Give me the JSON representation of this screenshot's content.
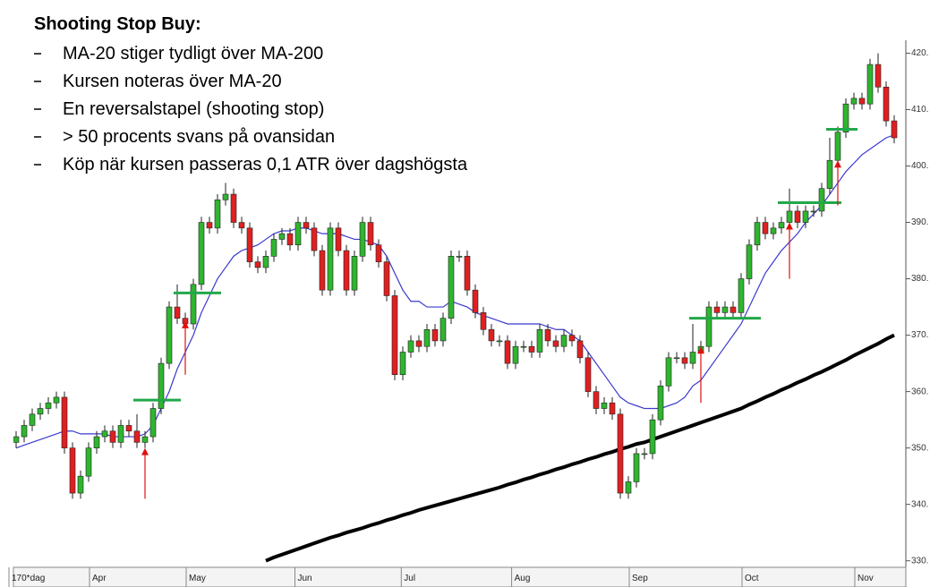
{
  "chart_data": {
    "type": "candlestick",
    "title": "Shooting Stop Buy:",
    "bullets": [
      "MA-20 stiger tydligt över MA-200",
      "Kursen noteras över MA-20",
      "En reversalstapel (shooting stop)",
      "> 50 procents svans på ovansidan",
      "Köp när kursen passeras 0,1 ATR över dagshögsta"
    ],
    "open": [
      351,
      352,
      354,
      356,
      357,
      358,
      359,
      350,
      342,
      345,
      350,
      352,
      353,
      351,
      354,
      353,
      351,
      352,
      357,
      365,
      375,
      373,
      372,
      379,
      390,
      389,
      394,
      395,
      390,
      389,
      383,
      382,
      384,
      387,
      388,
      386,
      390,
      389,
      385,
      378,
      389,
      385,
      378,
      384,
      390,
      386,
      383,
      377,
      363,
      367,
      369,
      368,
      371,
      369,
      373,
      384,
      384,
      378,
      374,
      371,
      369,
      369,
      365,
      368,
      368,
      367,
      371,
      369,
      368,
      370,
      369,
      366,
      360,
      357,
      358,
      356,
      342,
      344,
      349,
      349,
      355,
      361,
      366,
      366,
      365,
      367,
      368,
      375,
      374,
      375,
      374,
      380,
      386,
      390,
      388,
      389,
      390,
      392,
      390,
      392,
      392,
      396,
      401,
      406,
      411,
      412,
      411,
      418,
      414,
      408
    ],
    "high": [
      353,
      355,
      357,
      358,
      359,
      360,
      360,
      351,
      346,
      351,
      353,
      354,
      354,
      355,
      355,
      356,
      353,
      358,
      366,
      376,
      379,
      374,
      380,
      391,
      391,
      395,
      397,
      396,
      391,
      390,
      384,
      385,
      388,
      389,
      389,
      391,
      391,
      390,
      386,
      390,
      390,
      386,
      385,
      391,
      391,
      387,
      384,
      378,
      368,
      370,
      370,
      372,
      372,
      374,
      385,
      385,
      385,
      379,
      375,
      372,
      370,
      370,
      369,
      369,
      369,
      372,
      372,
      370,
      371,
      371,
      370,
      367,
      361,
      359,
      359,
      357,
      345,
      350,
      350,
      356,
      362,
      367,
      367,
      367,
      372,
      369,
      376,
      376,
      376,
      376,
      381,
      387,
      391,
      391,
      390,
      391,
      396,
      393,
      393,
      393,
      397,
      405,
      407,
      412,
      413,
      413,
      419,
      420,
      415,
      409
    ],
    "low": [
      350,
      351,
      353,
      355,
      356,
      357,
      349,
      341,
      341,
      344,
      349,
      351,
      350,
      350,
      352,
      350,
      350,
      351,
      356,
      364,
      372,
      371,
      371,
      378,
      388,
      388,
      393,
      389,
      388,
      382,
      381,
      381,
      383,
      386,
      385,
      385,
      388,
      384,
      377,
      377,
      384,
      377,
      377,
      383,
      385,
      382,
      376,
      362,
      362,
      366,
      367,
      367,
      368,
      368,
      372,
      383,
      377,
      373,
      370,
      368,
      368,
      364,
      364,
      367,
      366,
      366,
      368,
      367,
      367,
      368,
      365,
      359,
      356,
      356,
      355,
      341,
      341,
      343,
      348,
      348,
      354,
      360,
      365,
      364,
      364,
      366,
      367,
      373,
      373,
      373,
      373,
      379,
      385,
      387,
      387,
      388,
      389,
      389,
      389,
      391,
      391,
      395,
      400,
      405,
      410,
      410,
      410,
      413,
      407,
      404
    ],
    "close": [
      352,
      354,
      356,
      357,
      358,
      359,
      350,
      342,
      345,
      350,
      352,
      353,
      351,
      354,
      353,
      351,
      352,
      357,
      365,
      375,
      373,
      372,
      379,
      390,
      389,
      394,
      395,
      390,
      389,
      383,
      382,
      384,
      387,
      388,
      386,
      390,
      389,
      385,
      378,
      389,
      385,
      378,
      384,
      390,
      386,
      383,
      377,
      363,
      367,
      369,
      368,
      371,
      369,
      373,
      384,
      384,
      378,
      374,
      371,
      369,
      369,
      365,
      368,
      368,
      367,
      371,
      369,
      368,
      370,
      369,
      366,
      360,
      357,
      358,
      356,
      342,
      344,
      349,
      349,
      355,
      361,
      366,
      366,
      365,
      367,
      368,
      375,
      374,
      375,
      374,
      380,
      386,
      390,
      388,
      389,
      390,
      392,
      390,
      392,
      392,
      396,
      401,
      406,
      411,
      412,
      411,
      418,
      414,
      408,
      405
    ],
    "series": [
      {
        "name": "MA-20",
        "color": "#3a3ad0",
        "values": [
          350,
          350.5,
          351,
          351.5,
          352,
          352.5,
          353,
          353,
          352.5,
          352.5,
          352.5,
          352.5,
          352,
          352,
          352,
          352,
          352.5,
          354,
          357,
          360,
          364,
          367,
          370,
          374,
          377,
          380,
          382,
          384,
          385,
          385.5,
          386,
          387,
          388,
          388.5,
          388.5,
          389,
          389,
          388.5,
          388,
          388,
          388,
          387.5,
          387,
          387,
          386.5,
          386,
          384,
          381,
          378,
          376,
          376,
          375,
          375,
          375,
          376,
          375.5,
          375,
          374,
          373.5,
          373,
          372.5,
          372,
          372,
          372,
          372,
          372,
          371.5,
          371,
          371,
          370,
          369,
          367,
          365,
          363,
          361,
          359,
          358,
          357.5,
          357,
          357,
          357,
          357.5,
          358,
          359,
          361,
          362,
          364,
          366,
          368,
          370,
          372,
          375,
          378,
          381,
          383,
          385,
          386.5,
          388,
          390,
          391.5,
          393,
          395,
          397,
          399,
          400.5,
          402,
          403,
          404,
          405,
          405.5
        ]
      },
      {
        "name": "MA-200",
        "color": "#000000",
        "values": [
          null,
          null,
          null,
          null,
          null,
          null,
          null,
          null,
          null,
          null,
          null,
          null,
          null,
          null,
          null,
          null,
          null,
          null,
          null,
          null,
          null,
          null,
          null,
          null,
          null,
          null,
          null,
          null,
          null,
          null,
          null,
          330,
          330.6,
          331.1,
          331.6,
          332.1,
          332.6,
          333.1,
          333.6,
          334.1,
          334.5,
          335,
          335.4,
          335.8,
          336.3,
          336.7,
          337.2,
          337.6,
          338.1,
          338.5,
          339,
          339.4,
          339.8,
          340.2,
          340.6,
          341,
          341.4,
          341.8,
          342.2,
          342.6,
          343,
          343.5,
          343.9,
          344.4,
          344.8,
          345.3,
          345.7,
          346.2,
          346.6,
          347.1,
          347.5,
          348,
          348.4,
          348.9,
          349.3,
          349.8,
          350.2,
          350.7,
          351,
          351.5,
          352,
          352.5,
          353,
          353.5,
          354,
          354.5,
          355,
          355.5,
          356,
          356.5,
          357,
          357.7,
          358.3,
          359,
          359.6,
          360.3,
          360.9,
          361.6,
          362.2,
          362.9,
          363.5,
          364.2,
          364.9,
          365.6,
          366.4,
          367.1,
          367.8,
          368.5,
          369.3,
          370
        ]
      }
    ],
    "levels": [
      {
        "from": 15,
        "to": 20,
        "value": 358.5
      },
      {
        "from": 20,
        "to": 25,
        "value": 377.5
      },
      {
        "from": 84,
        "to": 92,
        "value": 373
      },
      {
        "from": 95,
        "to": 102,
        "value": 393.5
      },
      {
        "from": 101,
        "to": 104,
        "value": 406.5
      }
    ],
    "arrows": [
      {
        "index": 16,
        "from": 341,
        "to": 350
      },
      {
        "index": 21,
        "from": 363,
        "to": 372.5
      },
      {
        "index": 85,
        "from": 358,
        "to": 368
      },
      {
        "index": 96,
        "from": 380,
        "to": 390
      },
      {
        "index": 102,
        "from": 393,
        "to": 401
      }
    ],
    "up_color": "#2fb52f",
    "down_color": "#e02020",
    "level_color": "#22a84a",
    "arrow_color": "#e01010",
    "ylim": [
      329,
      421.5
    ],
    "yticks": [
      {
        "value": 330,
        "label": "330."
      },
      {
        "value": 340,
        "label": "340."
      },
      {
        "value": 350,
        "label": "350."
      },
      {
        "value": 360,
        "label": "360."
      },
      {
        "value": 370,
        "label": "370."
      },
      {
        "value": 380,
        "label": "380."
      },
      {
        "value": 390,
        "label": "390."
      },
      {
        "value": 400,
        "label": "400."
      },
      {
        "value": 410,
        "label": "410."
      },
      {
        "value": 420,
        "label": "420."
      }
    ],
    "xticks": [
      {
        "value": 0,
        "label": "170*dag"
      },
      {
        "value": 10,
        "label": "Apr"
      },
      {
        "value": 22,
        "label": "May"
      },
      {
        "value": 35.5,
        "label": "Jun"
      },
      {
        "value": 48.7,
        "label": "Jul"
      },
      {
        "value": 62.4,
        "label": "Aug"
      },
      {
        "value": 77,
        "label": "Sep"
      },
      {
        "value": 91,
        "label": "Oct"
      },
      {
        "value": 105,
        "label": "Nov"
      }
    ]
  }
}
